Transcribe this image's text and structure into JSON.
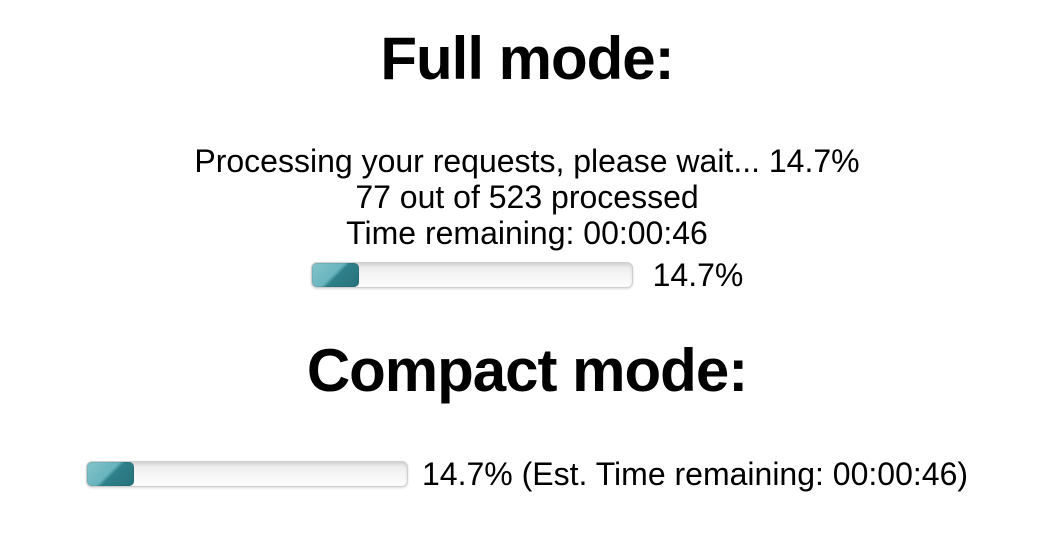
{
  "full_mode": {
    "heading": "Full mode:",
    "status_lines": [
      "Processing your requests, please wait... 14.7%",
      "77 out of 523 processed",
      "Time remaining: 00:00:46"
    ],
    "progress": {
      "percent": 14.7,
      "label": "14.7%"
    }
  },
  "compact_mode": {
    "heading": "Compact mode:",
    "progress": {
      "percent": 14.7,
      "label": "14.7% (Est. Time remaining: 00:00:46)"
    }
  },
  "colors": {
    "progress_fill_light": "#68b4bd",
    "progress_fill_dark": "#2e808a",
    "track_top": "#e7e7e7",
    "track_bottom": "#fdfdfd",
    "text": "#000000",
    "background": "#ffffff"
  }
}
